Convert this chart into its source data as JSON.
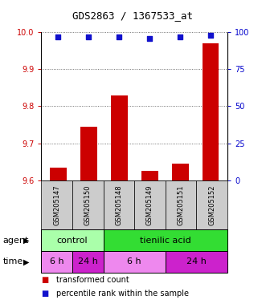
{
  "title": "GDS2863 / 1367533_at",
  "samples": [
    "GSM205147",
    "GSM205150",
    "GSM205148",
    "GSM205149",
    "GSM205151",
    "GSM205152"
  ],
  "bar_values": [
    9.635,
    9.745,
    9.83,
    9.625,
    9.645,
    9.97
  ],
  "percentile_values": [
    97,
    97,
    97,
    96,
    97,
    98
  ],
  "ylim_left": [
    9.6,
    10.0
  ],
  "ylim_right": [
    0,
    100
  ],
  "yticks_left": [
    9.6,
    9.7,
    9.8,
    9.9,
    10.0
  ],
  "yticks_right": [
    0,
    25,
    50,
    75,
    100
  ],
  "bar_color": "#cc0000",
  "dot_color": "#1111cc",
  "bar_width": 0.55,
  "agent_control_label": "control",
  "agent_tienilic_label": "tienilic acid",
  "time_6h_label": "6 h",
  "time_24h_label": "24 h",
  "agent_label": "agent",
  "time_label": "time",
  "legend_red_label": "transformed count",
  "legend_blue_label": "percentile rank within the sample",
  "color_control": "#aaffaa",
  "color_tienilic": "#33dd33",
  "color_6h_light": "#ee88ee",
  "color_6h_dark": "#dd44dd",
  "color_24h_light": "#dd44dd",
  "color_24h_dark": "#cc22cc",
  "color_gray": "#cccccc",
  "tick_color_left": "#cc0000",
  "tick_color_right": "#0000cc"
}
